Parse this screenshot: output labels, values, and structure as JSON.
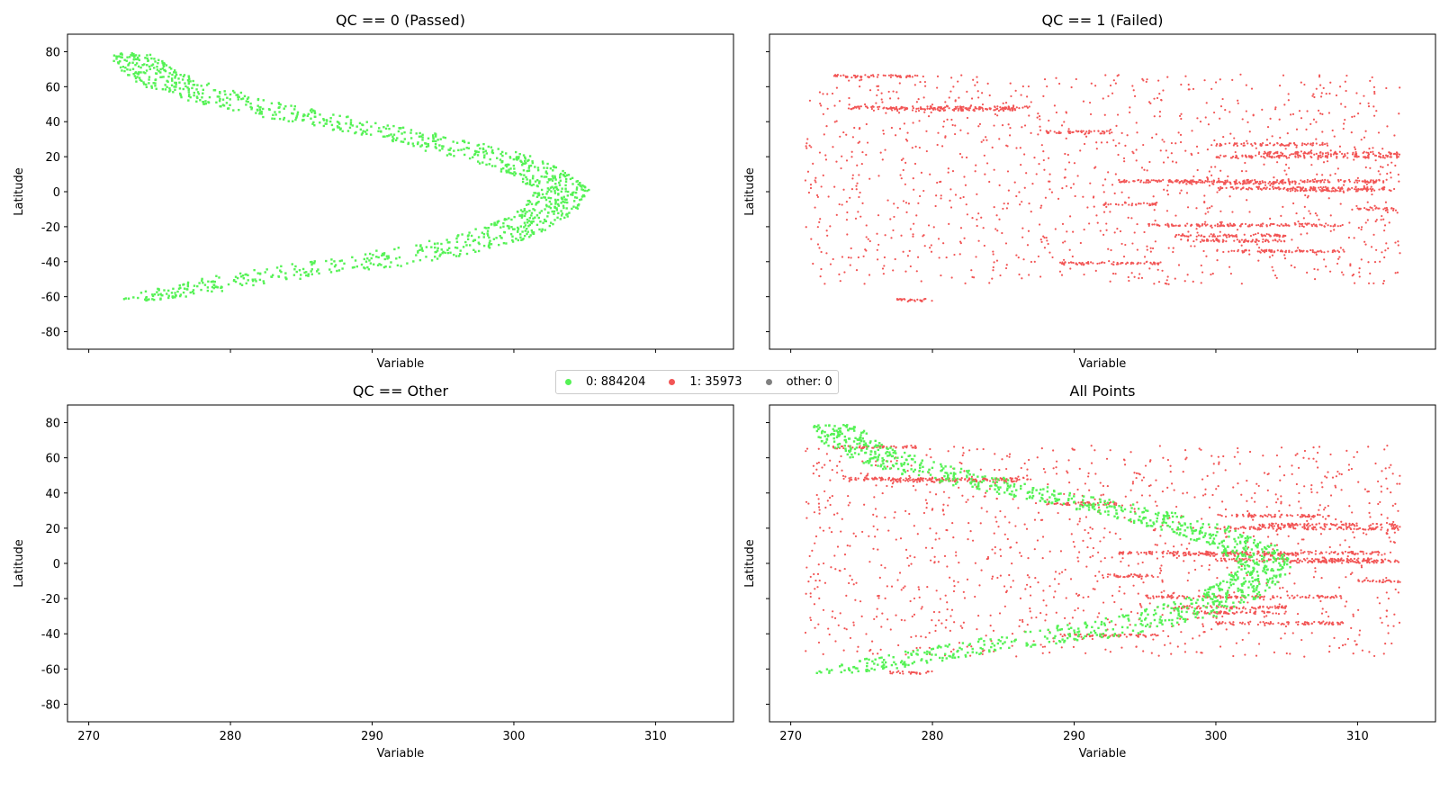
{
  "colors": {
    "passed": "#55f255",
    "failed": "#f25555",
    "other": "#808080"
  },
  "legend": {
    "items": [
      {
        "label": "0: 884204",
        "color": "#55f255"
      },
      {
        "label": "1: 35973",
        "color": "#f25555"
      },
      {
        "label": "other: 0",
        "color": "#808080"
      }
    ]
  },
  "chart_data": [
    {
      "type": "scatter",
      "title": "QC == 0 (Passed)",
      "xlabel": "Variable",
      "ylabel": "Latitude",
      "xlim": [
        268.5,
        315.5
      ],
      "ylim": [
        -90,
        90
      ],
      "xticks": [
        270,
        280,
        290,
        300,
        310
      ],
      "yticks": [
        -80,
        -60,
        -40,
        -20,
        0,
        20,
        40,
        60,
        80
      ],
      "show_xticklabels": false,
      "show_yticklabels": true,
      "grid": false,
      "series": [
        {
          "name": "0: 884204",
          "color": "#55f255",
          "count": 884204,
          "shape": "band",
          "center_lat": [
            -62,
            -58,
            -50,
            -40,
            -30,
            -20,
            -10,
            0,
            10,
            20,
            30,
            40,
            50,
            60,
            70,
            79
          ],
          "center_x": [
            273.5,
            276,
            281,
            290,
            296.5,
            300.5,
            302.5,
            303.5,
            302,
            298.5,
            293.5,
            287,
            281,
            276.5,
            274,
            273
          ],
          "half_width": [
            1.8,
            2.5,
            3.5,
            4.5,
            3.5,
            2.5,
            2.0,
            2.0,
            2.2,
            2.8,
            3.0,
            3.0,
            3.0,
            2.5,
            2.0,
            1.5
          ]
        }
      ]
    },
    {
      "type": "scatter",
      "title": "QC == 1 (Failed)",
      "xlabel": "Variable",
      "ylabel": "Latitude",
      "xlim": [
        268.5,
        315.5
      ],
      "ylim": [
        -90,
        90
      ],
      "xticks": [
        270,
        280,
        290,
        300,
        310
      ],
      "yticks": [
        -80,
        -60,
        -40,
        -20,
        0,
        20,
        40,
        60,
        80
      ],
      "show_xticklabels": false,
      "show_yticklabels": false,
      "grid": false,
      "series": [
        {
          "name": "1: 35973",
          "color": "#f25555",
          "count": 35973,
          "shape": "scatter",
          "x_range": [
            271,
            313
          ],
          "y_range": [
            -63,
            77
          ],
          "streaks": [
            {
              "lat": 48,
              "x": [
                274,
                287
              ]
            },
            {
              "lat": 47,
              "x": [
                277,
                286
              ]
            },
            {
              "lat": 66,
              "x": [
                273,
                279
              ]
            },
            {
              "lat": 34,
              "x": [
                288,
                293
              ]
            },
            {
              "lat": 27,
              "x": [
                300,
                308
              ]
            },
            {
              "lat": 22,
              "x": [
                303,
                313
              ]
            },
            {
              "lat": 20,
              "x": [
                300,
                313
              ]
            },
            {
              "lat": 6,
              "x": [
                293,
                312
              ]
            },
            {
              "lat": 5,
              "x": [
                297,
                306
              ]
            },
            {
              "lat": 2,
              "x": [
                300,
                312
              ]
            },
            {
              "lat": 1,
              "x": [
                305,
                313
              ]
            },
            {
              "lat": -7,
              "x": [
                292,
                296
              ]
            },
            {
              "lat": -10,
              "x": [
                310,
                313
              ]
            },
            {
              "lat": -19,
              "x": [
                295,
                309
              ]
            },
            {
              "lat": -25,
              "x": [
                297,
                305
              ]
            },
            {
              "lat": -28,
              "x": [
                298,
                305
              ]
            },
            {
              "lat": -34,
              "x": [
                300,
                309
              ]
            },
            {
              "lat": -41,
              "x": [
                289,
                296
              ]
            },
            {
              "lat": -62,
              "x": [
                277,
                280
              ]
            }
          ]
        }
      ]
    },
    {
      "type": "scatter",
      "title": "QC == Other",
      "xlabel": "Variable",
      "ylabel": "Latitude",
      "xlim": [
        268.5,
        315.5
      ],
      "ylim": [
        -90,
        90
      ],
      "xticks": [
        270,
        280,
        290,
        300,
        310
      ],
      "yticks": [
        -80,
        -60,
        -40,
        -20,
        0,
        20,
        40,
        60,
        80
      ],
      "show_xticklabels": true,
      "show_yticklabels": true,
      "grid": false,
      "series": [
        {
          "name": "other: 0",
          "color": "#808080",
          "count": 0,
          "shape": "none"
        }
      ]
    },
    {
      "type": "scatter",
      "title": "All Points",
      "xlabel": "Variable",
      "ylabel": "Latitude",
      "xlim": [
        268.5,
        315.5
      ],
      "ylim": [
        -90,
        90
      ],
      "xticks": [
        270,
        280,
        290,
        300,
        310
      ],
      "yticks": [
        -80,
        -60,
        -40,
        -20,
        0,
        20,
        40,
        60,
        80
      ],
      "show_xticklabels": true,
      "show_yticklabels": false,
      "grid": false,
      "series": [
        {
          "name": "1: 35973",
          "color": "#f25555",
          "ref": 1
        },
        {
          "name": "0: 884204",
          "color": "#55f255",
          "ref": 0
        }
      ]
    }
  ]
}
